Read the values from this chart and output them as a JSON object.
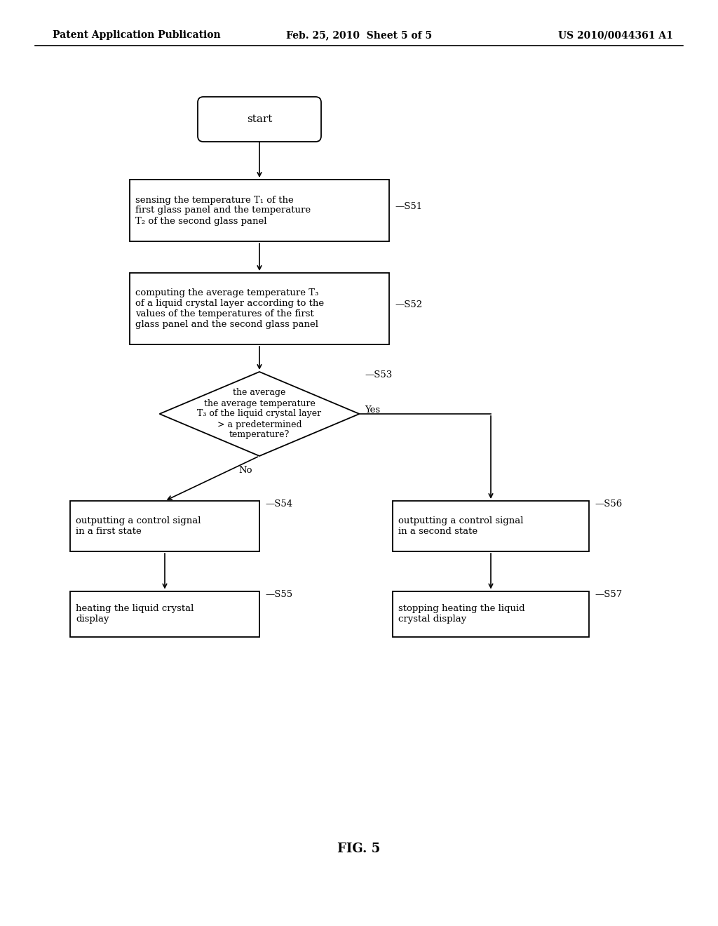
{
  "bg_color": "#ffffff",
  "header_left": "Patent Application Publication",
  "header_mid": "Feb. 25, 2010  Sheet 5 of 5",
  "header_right": "US 2010/0044361 A1",
  "footer_label": "FIG. 5",
  "start_text": "start",
  "s51_text": "sensing the temperature T₁ of the\nfirst glass panel and the temperature\nT₂ of the second glass panel",
  "s51_label": "—S51",
  "s52_text": "computing the average temperature T₃\nof a liquid crystal layer according to the\nvalues of the temperatures of the first\nglass panel and the second glass panel",
  "s52_label": "—S52",
  "s53_text": "the average\nthe average temperature\nT₃ of the liquid crystal layer\n> a predetermined\ntemperature?",
  "s53_label": "—S53",
  "s54_text": "outputting a control signal\nin a first state",
  "s54_label": "—S54",
  "s55_text": "heating the liquid crystal\ndisplay",
  "s55_label": "—S55",
  "s56_text": "outputting a control signal\nin a second state",
  "s56_label": "—S56",
  "s57_text": "stopping heating the liquid\ncrystal display",
  "s57_label": "—S57",
  "yes_text": "Yes",
  "no_text": "No",
  "fig_label": "FIG. 5"
}
